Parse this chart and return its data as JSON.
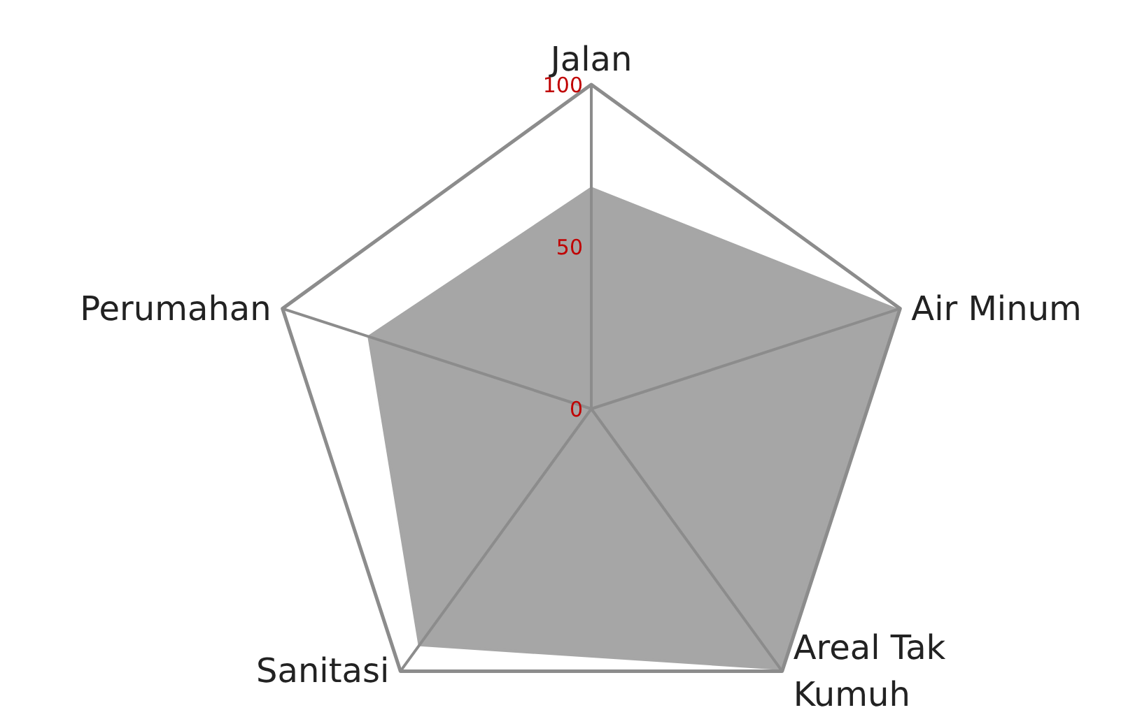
{
  "chart_data": {
    "type": "radar",
    "categories": [
      "Jalan",
      "Air Minum",
      "Areal Tak\nKumuh",
      "Sanitasi",
      "Perumahan"
    ],
    "series": [
      {
        "color": "#a6a6a6",
        "values": [
          68,
          99,
          99,
          90,
          72
        ]
      }
    ],
    "ylim": [
      0,
      100
    ],
    "yticks": [
      0,
      50,
      100
    ],
    "grid": true
  }
}
